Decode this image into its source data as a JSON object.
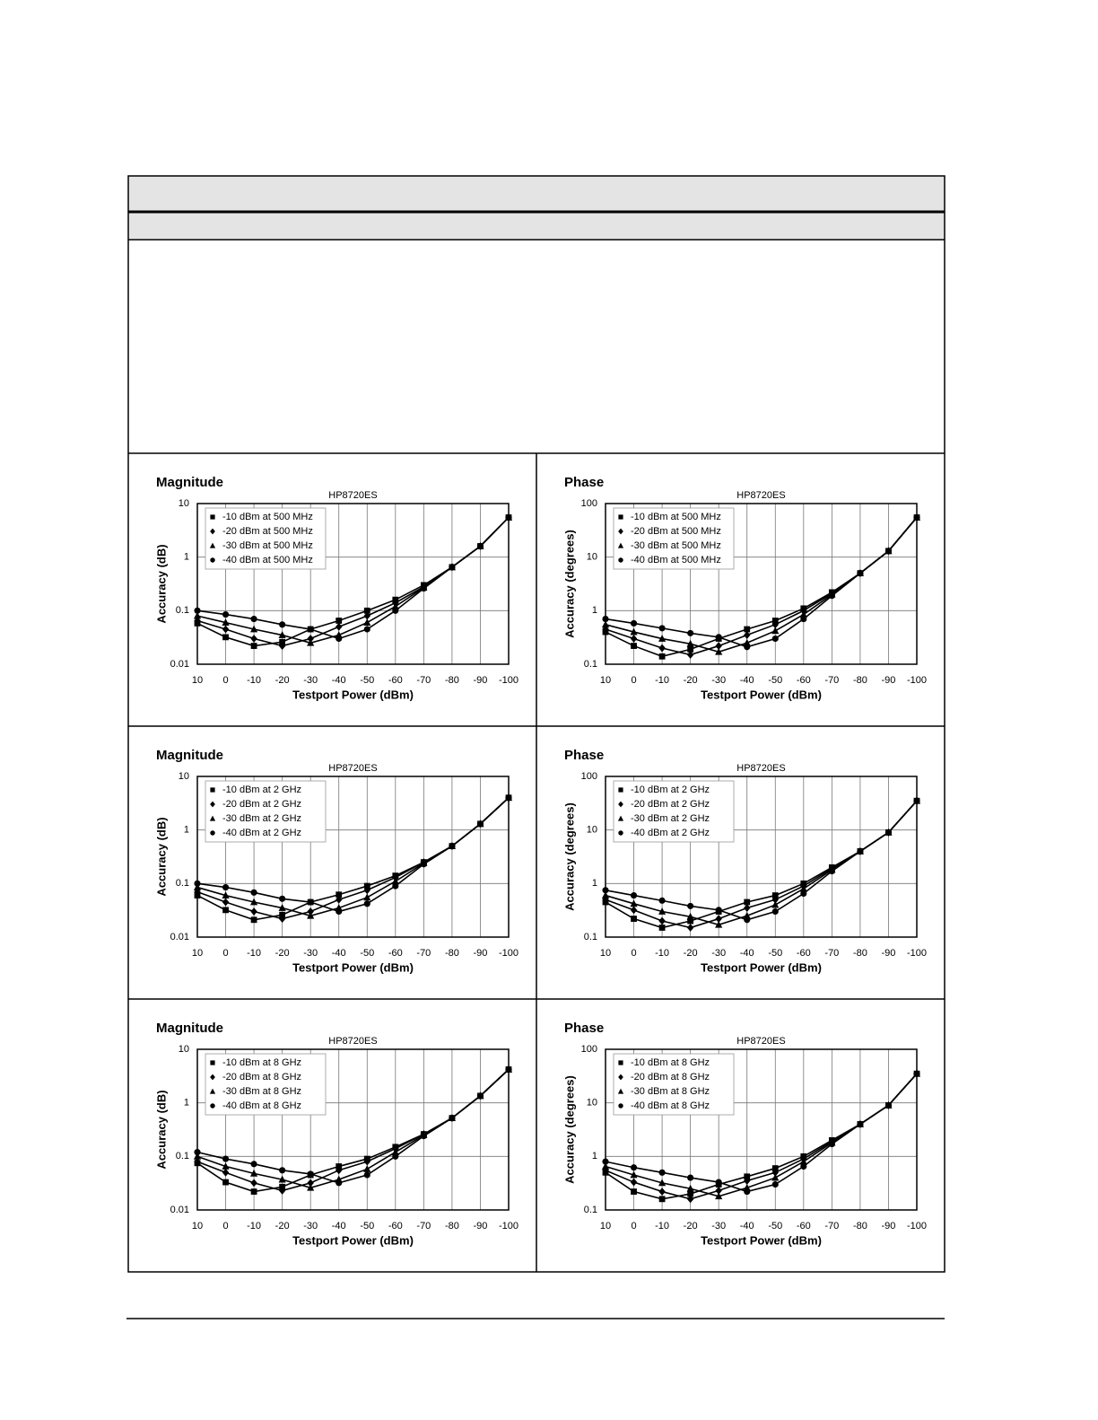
{
  "chart_data": [
    {
      "type": "line",
      "title": "Magnitude",
      "subtitle": "HP8720ES",
      "ylabel": "Accuracy (dB)",
      "xlabel": "Testport Power (dBm)",
      "x": [
        10,
        0,
        -10,
        -20,
        -30,
        -40,
        -50,
        -60,
        -70,
        -80,
        -90,
        -100
      ],
      "xlim": [
        10,
        -100
      ],
      "xticks": [
        10,
        0,
        -10,
        -20,
        -30,
        -40,
        -50,
        -60,
        -70,
        -80,
        -90,
        -100
      ],
      "ylim": [
        0.01,
        10
      ],
      "yticks": [
        0.01,
        0.1,
        1,
        10
      ],
      "log_y": true,
      "grid": true,
      "legend": "upper-left",
      "series": [
        {
          "name": "-10 dBm at 500 MHz",
          "color": "#000000",
          "marker": "square",
          "values": [
            0.058,
            0.032,
            0.022,
            0.026,
            0.045,
            0.065,
            0.1,
            0.16,
            0.3,
            0.65,
            1.6,
            5.5
          ]
        },
        {
          "name": "-20 dBm at 500 MHz",
          "color": "#000000",
          "marker": "diamond",
          "values": [
            0.065,
            0.045,
            0.03,
            0.022,
            0.03,
            0.05,
            0.08,
            0.14,
            0.28,
            0.65,
            1.6,
            5.5
          ]
        },
        {
          "name": "-30 dBm at 500 MHz",
          "color": "#000000",
          "marker": "triangle",
          "values": [
            0.08,
            0.06,
            0.045,
            0.035,
            0.025,
            0.035,
            0.06,
            0.12,
            0.27,
            0.65,
            1.6,
            5.5
          ]
        },
        {
          "name": "-40 dBm at 500 MHz",
          "color": "#000000",
          "marker": "circle",
          "values": [
            0.1,
            0.085,
            0.07,
            0.055,
            0.045,
            0.03,
            0.045,
            0.1,
            0.26,
            0.65,
            1.6,
            5.5
          ]
        }
      ]
    },
    {
      "type": "line",
      "title": "Phase",
      "subtitle": "HP8720ES",
      "ylabel": "Accuracy (degrees)",
      "xlabel": "Testport Power (dBm)",
      "x": [
        10,
        0,
        -10,
        -20,
        -30,
        -40,
        -50,
        -60,
        -70,
        -80,
        -90,
        -100
      ],
      "xlim": [
        10,
        -100
      ],
      "xticks": [
        10,
        0,
        -10,
        -20,
        -30,
        -40,
        -50,
        -60,
        -70,
        -80,
        -90,
        -100
      ],
      "ylim": [
        0.1,
        100
      ],
      "yticks": [
        0.1,
        1,
        10,
        100
      ],
      "log_y": true,
      "grid": true,
      "legend": "upper-left",
      "series": [
        {
          "name": "-10 dBm at 500 MHz",
          "color": "#000000",
          "marker": "square",
          "values": [
            0.4,
            0.22,
            0.14,
            0.19,
            0.3,
            0.45,
            0.65,
            1.1,
            2.2,
            5,
            13,
            55
          ]
        },
        {
          "name": "-20 dBm at 500 MHz",
          "color": "#000000",
          "marker": "diamond",
          "values": [
            0.45,
            0.3,
            0.2,
            0.15,
            0.22,
            0.35,
            0.55,
            1,
            2.1,
            5,
            13,
            55
          ]
        },
        {
          "name": "-30 dBm at 500 MHz",
          "color": "#000000",
          "marker": "triangle",
          "values": [
            0.55,
            0.4,
            0.3,
            0.24,
            0.17,
            0.25,
            0.42,
            0.85,
            2,
            5,
            13,
            55
          ]
        },
        {
          "name": "-40 dBm at 500 MHz",
          "color": "#000000",
          "marker": "circle",
          "values": [
            0.7,
            0.58,
            0.47,
            0.38,
            0.32,
            0.21,
            0.3,
            0.7,
            1.9,
            5,
            13,
            55
          ]
        }
      ]
    },
    {
      "type": "line",
      "title": "Magnitude",
      "subtitle": "HP8720ES",
      "ylabel": "Accuracy (dB)",
      "xlabel": "Testport Power (dBm)",
      "x": [
        10,
        0,
        -10,
        -20,
        -30,
        -40,
        -50,
        -60,
        -70,
        -80,
        -90,
        -100
      ],
      "xlim": [
        10,
        -100
      ],
      "xticks": [
        10,
        0,
        -10,
        -20,
        -30,
        -40,
        -50,
        -60,
        -70,
        -80,
        -90,
        -100
      ],
      "ylim": [
        0.01,
        10
      ],
      "yticks": [
        0.01,
        0.1,
        1,
        10
      ],
      "log_y": true,
      "grid": true,
      "legend": "upper-left",
      "series": [
        {
          "name": "-10 dBm at 2 GHz",
          "color": "#000000",
          "marker": "square",
          "values": [
            0.06,
            0.032,
            0.021,
            0.026,
            0.045,
            0.062,
            0.09,
            0.14,
            0.25,
            0.5,
            1.3,
            4
          ]
        },
        {
          "name": "-20 dBm at 2 GHz",
          "color": "#000000",
          "marker": "diamond",
          "values": [
            0.07,
            0.045,
            0.03,
            0.022,
            0.03,
            0.05,
            0.075,
            0.13,
            0.25,
            0.5,
            1.3,
            4
          ]
        },
        {
          "name": "-30 dBm at 2 GHz",
          "color": "#000000",
          "marker": "triangle",
          "values": [
            0.085,
            0.06,
            0.045,
            0.035,
            0.025,
            0.035,
            0.055,
            0.11,
            0.24,
            0.5,
            1.3,
            4
          ]
        },
        {
          "name": "-40 dBm at 2 GHz",
          "color": "#000000",
          "marker": "circle",
          "values": [
            0.1,
            0.085,
            0.068,
            0.052,
            0.045,
            0.03,
            0.042,
            0.09,
            0.23,
            0.5,
            1.3,
            4
          ]
        }
      ]
    },
    {
      "type": "line",
      "title": "Phase",
      "subtitle": "HP8720ES",
      "ylabel": "Accuracy (degrees)",
      "xlabel": "Testport Power (dBm)",
      "x": [
        10,
        0,
        -10,
        -20,
        -30,
        -40,
        -50,
        -60,
        -70,
        -80,
        -90,
        -100
      ],
      "xlim": [
        10,
        -100
      ],
      "xticks": [
        10,
        0,
        -10,
        -20,
        -30,
        -40,
        -50,
        -60,
        -70,
        -80,
        -90,
        -100
      ],
      "ylim": [
        0.1,
        100
      ],
      "yticks": [
        0.1,
        1,
        10,
        100
      ],
      "log_y": true,
      "grid": true,
      "legend": "upper-left",
      "series": [
        {
          "name": "-10 dBm at 2 GHz",
          "color": "#000000",
          "marker": "square",
          "values": [
            0.45,
            0.22,
            0.15,
            0.2,
            0.3,
            0.45,
            0.6,
            1,
            2,
            4,
            9,
            35
          ]
        },
        {
          "name": "-20 dBm at 2 GHz",
          "color": "#000000",
          "marker": "diamond",
          "values": [
            0.5,
            0.32,
            0.2,
            0.15,
            0.22,
            0.35,
            0.5,
            0.9,
            1.9,
            4,
            9,
            35
          ]
        },
        {
          "name": "-30 dBm at 2 GHz",
          "color": "#000000",
          "marker": "triangle",
          "values": [
            0.6,
            0.42,
            0.3,
            0.24,
            0.17,
            0.25,
            0.4,
            0.8,
            1.8,
            4,
            9,
            35
          ]
        },
        {
          "name": "-40 dBm at 2 GHz",
          "color": "#000000",
          "marker": "circle",
          "values": [
            0.75,
            0.6,
            0.48,
            0.38,
            0.32,
            0.21,
            0.3,
            0.65,
            1.7,
            4,
            9,
            35
          ]
        }
      ]
    },
    {
      "type": "line",
      "title": "Magnitude",
      "subtitle": "HP8720ES",
      "ylabel": "Accuracy (dB)",
      "xlabel": "Testport Power (dBm)",
      "x": [
        10,
        0,
        -10,
        -20,
        -30,
        -40,
        -50,
        -60,
        -70,
        -80,
        -90,
        -100
      ],
      "xlim": [
        10,
        -100
      ],
      "xticks": [
        10,
        0,
        -10,
        -20,
        -30,
        -40,
        -50,
        -60,
        -70,
        -80,
        -90,
        -100
      ],
      "ylim": [
        0.01,
        10
      ],
      "yticks": [
        0.01,
        0.1,
        1,
        10
      ],
      "log_y": true,
      "grid": true,
      "legend": "upper-left",
      "series": [
        {
          "name": "-10 dBm at 8 GHz",
          "color": "#000000",
          "marker": "square",
          "values": [
            0.075,
            0.033,
            0.022,
            0.027,
            0.045,
            0.065,
            0.09,
            0.15,
            0.26,
            0.52,
            1.35,
            4.2
          ]
        },
        {
          "name": "-20 dBm at 8 GHz",
          "color": "#000000",
          "marker": "diamond",
          "values": [
            0.08,
            0.05,
            0.032,
            0.023,
            0.032,
            0.055,
            0.08,
            0.14,
            0.26,
            0.52,
            1.35,
            4.2
          ]
        },
        {
          "name": "-30 dBm at 8 GHz",
          "color": "#000000",
          "marker": "triangle",
          "values": [
            0.1,
            0.065,
            0.048,
            0.037,
            0.026,
            0.037,
            0.058,
            0.12,
            0.25,
            0.52,
            1.35,
            4.2
          ]
        },
        {
          "name": "-40 dBm at 8 GHz",
          "color": "#000000",
          "marker": "circle",
          "values": [
            0.12,
            0.09,
            0.072,
            0.055,
            0.047,
            0.032,
            0.045,
            0.1,
            0.24,
            0.52,
            1.35,
            4.2
          ]
        }
      ]
    },
    {
      "type": "line",
      "title": "Phase",
      "subtitle": "HP8720ES",
      "ylabel": "Accuracy (degrees)",
      "xlabel": "Testport Power (dBm)",
      "x": [
        10,
        0,
        -10,
        -20,
        -30,
        -40,
        -50,
        -60,
        -70,
        -80,
        -90,
        -100
      ],
      "xlim": [
        10,
        -100
      ],
      "xticks": [
        10,
        0,
        -10,
        -20,
        -30,
        -40,
        -50,
        -60,
        -70,
        -80,
        -90,
        -100
      ],
      "ylim": [
        0.1,
        100
      ],
      "yticks": [
        0.1,
        1,
        10,
        100
      ],
      "log_y": true,
      "grid": true,
      "legend": "upper-left",
      "series": [
        {
          "name": "-10 dBm at 8 GHz",
          "color": "#000000",
          "marker": "square",
          "values": [
            0.5,
            0.22,
            0.16,
            0.2,
            0.3,
            0.42,
            0.6,
            1,
            2,
            4,
            9,
            35
          ]
        },
        {
          "name": "-20 dBm at 8 GHz",
          "color": "#000000",
          "marker": "diamond",
          "values": [
            0.55,
            0.33,
            0.22,
            0.16,
            0.23,
            0.35,
            0.5,
            0.9,
            1.9,
            4,
            9,
            35
          ]
        },
        {
          "name": "-30 dBm at 8 GHz",
          "color": "#000000",
          "marker": "triangle",
          "values": [
            0.65,
            0.45,
            0.32,
            0.25,
            0.18,
            0.26,
            0.4,
            0.8,
            1.8,
            4,
            9,
            35
          ]
        },
        {
          "name": "-40 dBm at 8 GHz",
          "color": "#000000",
          "marker": "circle",
          "values": [
            0.8,
            0.62,
            0.5,
            0.4,
            0.33,
            0.22,
            0.3,
            0.65,
            1.7,
            4,
            9,
            35
          ]
        }
      ]
    }
  ]
}
